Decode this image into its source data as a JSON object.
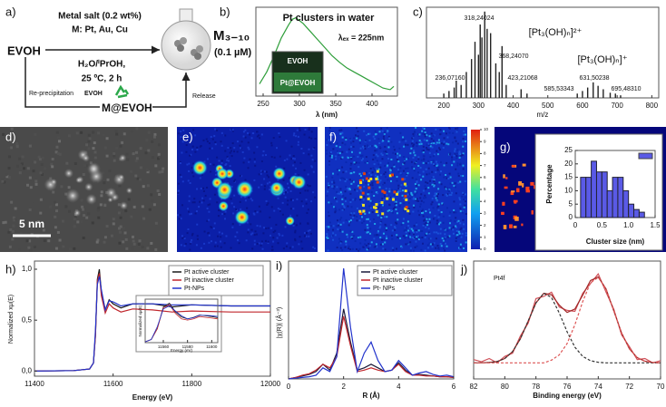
{
  "scheme": {
    "label": "a)",
    "reagent": "Metal salt (0.2 wt%)",
    "metals": "M: Pt, Au, Cu",
    "polymer": "EVOH",
    "conditions_1": "H₂O/ⁱPrOH,",
    "conditions_2": "25 ºC, 2 h",
    "reprecipitation": "Re-precipitation",
    "evoh_recycle": "EVOH",
    "product": "M@EVOH",
    "release": "Release",
    "clusters": "M₃₋₁₀",
    "concentration": "(0.1 µM)"
  },
  "images": {
    "d_label": "d)",
    "scale_bar": "5 nm",
    "e_label": "e)",
    "f_label": "f)",
    "f_colorbar_ticks": [
      0,
      1,
      2,
      3,
      4,
      5,
      6,
      7,
      8,
      9,
      10
    ],
    "g_label": "g)"
  },
  "chart_data": [
    {
      "type": "line",
      "label": "b)",
      "title": "Pt clusters in water",
      "annotation": "λₑₓ = 225nm",
      "inset_labels": [
        "EVOH",
        "Pt@EVOH"
      ],
      "x": [
        245,
        255,
        265,
        275,
        285,
        290,
        295,
        305,
        315,
        325,
        335,
        345,
        355,
        365,
        375,
        385,
        395,
        405,
        415,
        425,
        430
      ],
      "series": [
        {
          "color": "#2e9e3a",
          "values": [
            0.15,
            0.3,
            0.5,
            0.72,
            0.88,
            0.95,
            0.97,
            0.9,
            0.8,
            0.7,
            0.6,
            0.5,
            0.42,
            0.35,
            0.3,
            0.25,
            0.2,
            0.15,
            0.1,
            0.08,
            0.12
          ]
        }
      ],
      "xlim": [
        240,
        435
      ],
      "ylim": [
        0,
        1.1
      ],
      "xticks": [
        250,
        300,
        350,
        400
      ],
      "xlabel": "λ (nm)"
    },
    {
      "type": "bar",
      "label": "c)",
      "color": "#222222",
      "x": [
        200,
        215,
        230,
        236,
        250,
        265,
        280,
        290,
        300,
        305,
        310,
        318,
        325,
        335,
        350,
        360,
        368,
        380,
        423,
        440,
        585,
        600,
        615,
        631,
        645,
        660,
        680,
        695,
        710
      ],
      "values": [
        0.05,
        0.08,
        0.12,
        0.2,
        0.15,
        0.3,
        0.45,
        0.65,
        0.5,
        0.85,
        0.7,
        1.0,
        0.8,
        0.75,
        0.4,
        0.3,
        0.6,
        0.15,
        0.1,
        0.05,
        0.05,
        0.08,
        0.12,
        0.18,
        0.14,
        0.1,
        0.06,
        0.05,
        0.03
      ],
      "xlim": [
        150,
        820
      ],
      "ylim": [
        0,
        1.05
      ],
      "xticks": [
        200,
        300,
        400,
        500,
        600,
        700,
        800
      ],
      "xlabel": "m/z",
      "peak_labels": [
        "318,24024",
        "368,24070",
        "236,07160",
        "423,21068",
        "585,53343",
        "631,50238",
        "695,48310"
      ],
      "ion_labels": [
        "[Pt₃(OH)ₙ]²⁺",
        "[Pt₃(OH)ₙ]⁺"
      ]
    },
    {
      "type": "histogram",
      "color": "#5a5ae6",
      "bins": [
        0.1,
        0.2,
        0.3,
        0.4,
        0.5,
        0.6,
        0.7,
        0.8,
        0.9,
        1.0,
        1.1,
        1.2,
        1.3
      ],
      "values": [
        15,
        15,
        21,
        17,
        17,
        10,
        15,
        15,
        10,
        5,
        3,
        2
      ],
      "xlim": [
        0,
        1.5
      ],
      "ylim": [
        0,
        25
      ],
      "xticks": [
        0,
        0.5,
        {
          "value": 1,
          "label": "1.0"
        },
        1.5
      ],
      "yticks": [
        0,
        5,
        10,
        15,
        20,
        25
      ],
      "xlabel": "Cluster size (nm)",
      "ylabel": "Percentage"
    },
    {
      "type": "line",
      "label": "h)",
      "x": [
        11400,
        11500,
        11540,
        11550,
        11555,
        11560,
        11565,
        11570,
        11580,
        11590,
        11600,
        11620,
        11650,
        11700,
        11750,
        11800,
        11900,
        12000
      ],
      "series": [
        {
          "name": "Pt active cluster",
          "color": "#1a1a1a",
          "values": [
            0,
            0.005,
            0.02,
            0.08,
            0.35,
            0.9,
            1.0,
            0.78,
            0.6,
            0.7,
            0.66,
            0.62,
            0.66,
            0.66,
            0.63,
            0.65,
            0.64,
            0.64
          ]
        },
        {
          "name": "Pt inactive cluster",
          "color": "#c0262c",
          "values": [
            0,
            0.005,
            0.02,
            0.08,
            0.35,
            0.88,
            0.96,
            0.74,
            0.57,
            0.66,
            0.62,
            0.58,
            0.61,
            0.6,
            0.58,
            0.59,
            0.58,
            0.58
          ]
        },
        {
          "name": "Pt-NPs",
          "color": "#2233cc",
          "values": [
            0,
            0.005,
            0.02,
            0.08,
            0.4,
            0.85,
            0.93,
            0.8,
            0.6,
            0.69,
            0.68,
            0.64,
            0.66,
            0.66,
            0.65,
            0.65,
            0.64,
            0.64
          ]
        }
      ],
      "xlim": [
        11400,
        12000
      ],
      "ylim": [
        -0.05,
        1.08
      ],
      "xticks": [
        11400,
        11600,
        11800,
        12000
      ],
      "yticks": [
        {
          "value": 0,
          "label": "0,0"
        },
        {
          "value": 0.5,
          "label": "0,5"
        },
        {
          "value": 1,
          "label": "1,0"
        }
      ],
      "xlabel": "Energy (eV)",
      "ylabel": "Normalized xμ(E)",
      "inset": {
        "x": [
          11545,
          11550,
          11555,
          11560,
          11565,
          11570,
          11575,
          11580,
          11585,
          11590,
          11595,
          11600,
          11605
        ],
        "series": [
          {
            "color": "#1a1a1a",
            "values": [
              0.02,
              0.08,
              0.35,
              0.9,
              1.0,
              0.78,
              0.65,
              0.6,
              0.64,
              0.7,
              0.68,
              0.66,
              0.63
            ]
          },
          {
            "color": "#c0262c",
            "values": [
              0.02,
              0.08,
              0.35,
              0.88,
              0.96,
              0.74,
              0.6,
              0.57,
              0.6,
              0.66,
              0.64,
              0.62,
              0.6
            ]
          },
          {
            "color": "#2233cc",
            "values": [
              0.02,
              0.08,
              0.4,
              0.85,
              0.93,
              0.8,
              0.68,
              0.6,
              0.63,
              0.69,
              0.69,
              0.68,
              0.66
            ]
          }
        ],
        "xlim": [
          11545,
          11605
        ],
        "ylim": [
          0,
          1.1
        ],
        "xticks": [
          11560,
          11580,
          11600
        ],
        "xlabel": "Energy (eV)",
        "ylabel": "Normalized xμ(E)"
      }
    },
    {
      "type": "line",
      "label": "i)",
      "x": [
        0,
        0.25,
        0.5,
        0.75,
        1,
        1.25,
        1.5,
        1.75,
        2,
        2.25,
        2.5,
        2.75,
        3,
        3.25,
        3.5,
        3.75,
        4,
        4.25,
        4.5,
        4.75,
        5,
        5.25,
        5.5,
        5.75,
        6
      ],
      "series": [
        {
          "name": "Pt active cluster",
          "color": "#1a1a3a",
          "values": [
            0,
            0.02,
            0.04,
            0.06,
            0.1,
            0.2,
            0.12,
            0.35,
            0.95,
            0.5,
            0.12,
            0.15,
            0.2,
            0.15,
            0.1,
            0.12,
            0.22,
            0.12,
            0.05,
            0.06,
            0.05,
            0.04,
            0.03,
            0.03,
            0.02
          ]
        },
        {
          "name": "Pt inactive cluster",
          "color": "#c0262c",
          "values": [
            0,
            0.02,
            0.05,
            0.07,
            0.12,
            0.2,
            0.15,
            0.3,
            0.85,
            0.45,
            0.1,
            0.12,
            0.15,
            0.12,
            0.1,
            0.12,
            0.2,
            0.1,
            0.05,
            0.05,
            0.04,
            0.04,
            0.03,
            0.03,
            0.02
          ]
        },
        {
          "name": "Pt- NPs",
          "color": "#2233cc",
          "values": [
            0,
            0.01,
            0.02,
            0.03,
            0.05,
            0.15,
            0.1,
            0.3,
            1.5,
            0.7,
            0.1,
            0.35,
            0.5,
            0.25,
            0.1,
            0.12,
            0.25,
            0.15,
            0.05,
            0.08,
            0.1,
            0.06,
            0.04,
            0.05,
            0.03
          ]
        }
      ],
      "xlim": [
        0,
        6
      ],
      "ylim": [
        0,
        1.6
      ],
      "xticks": [
        0,
        2,
        4,
        6
      ],
      "xlabel": "R (Å)",
      "ylabel": "|χ(R)| (Å⁻³)"
    },
    {
      "type": "line",
      "label": "j)",
      "annotation": "Pt4f",
      "x": [
        82,
        81.5,
        81,
        80.5,
        80,
        79.5,
        79,
        78.5,
        78,
        77.5,
        77,
        76.5,
        76,
        75.5,
        75,
        74.5,
        74,
        73.5,
        73,
        72.5,
        72,
        71.5,
        71,
        70.5,
        70
      ],
      "series": [
        {
          "color": "#d0525a",
          "values": [
            0.03,
            0.01,
            0.04,
            0,
            0.06,
            0.09,
            0.25,
            0.37,
            0.6,
            0.62,
            0.66,
            0.52,
            0.49,
            0.48,
            0.65,
            0.74,
            0.83,
            0.66,
            0.5,
            0.26,
            0.15,
            0.03,
            0.04,
            0,
            0.02
          ]
        },
        {
          "color": "#a02828",
          "values": [
            0,
            0.001,
            0.003,
            0.012,
            0.04,
            0.105,
            0.225,
            0.39,
            0.56,
            0.65,
            0.635,
            0.539,
            0.47,
            0.502,
            0.632,
            0.769,
            0.802,
            0.69,
            0.485,
            0.278,
            0.13,
            0.049,
            0.015,
            0.004,
            0
          ]
        },
        {
          "color": "#333333",
          "dash": true,
          "values": [
            0,
            0.001,
            0.003,
            0.012,
            0.04,
            0.105,
            0.225,
            0.39,
            0.56,
            0.65,
            0.61,
            0.465,
            0.29,
            0.146,
            0.06,
            0.02,
            0.005,
            0,
            0,
            0,
            0,
            0,
            0,
            0,
            0
          ]
        },
        {
          "color": "#dd5555",
          "dash": true,
          "values": [
            0,
            0,
            0,
            0,
            0,
            0,
            0,
            0,
            0,
            0,
            0.025,
            0.074,
            0.18,
            0.356,
            0.572,
            0.749,
            0.797,
            0.69,
            0.485,
            0.278,
            0.13,
            0.049,
            0.015,
            0.004,
            0
          ]
        }
      ],
      "xlim": [
        82,
        70
      ],
      "ylim": [
        -0.15,
        0.95
      ],
      "xticks": [
        82,
        80,
        78,
        76,
        74,
        72,
        70
      ],
      "xlabel": "Binding energy (eV)"
    }
  ]
}
